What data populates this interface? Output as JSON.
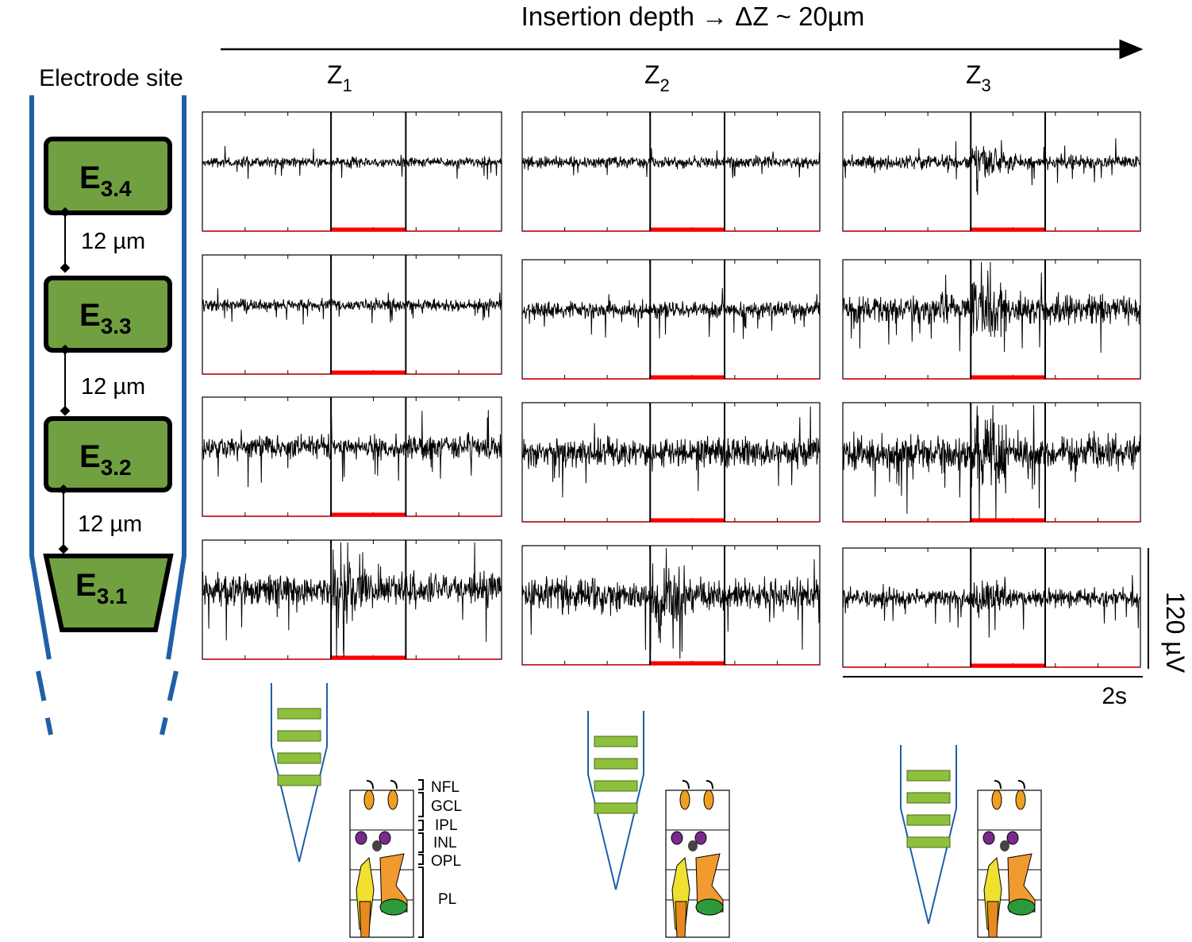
{
  "header": {
    "title": "Insertion depth → ΔZ ~ 20µm"
  },
  "columns": [
    {
      "main": "Z",
      "sub": "1"
    },
    {
      "main": "Z",
      "sub": "2"
    },
    {
      "main": "Z",
      "sub": "3"
    }
  ],
  "electrode": {
    "title": "Electrode site",
    "sites": [
      {
        "main": "E",
        "sub": "3.4"
      },
      {
        "main": "E",
        "sub": "3.3"
      },
      {
        "main": "E",
        "sub": "3.2"
      },
      {
        "main": "E",
        "sub": "3.1"
      }
    ],
    "spacings": [
      "12 µm",
      "12 µm",
      "12 µm"
    ]
  },
  "scale_bar": {
    "vertical": "120 µV",
    "horizontal": "2s"
  },
  "layers": [
    "NFL",
    "GCL",
    "IPL",
    "INL",
    "OPL",
    "PL"
  ]
}
